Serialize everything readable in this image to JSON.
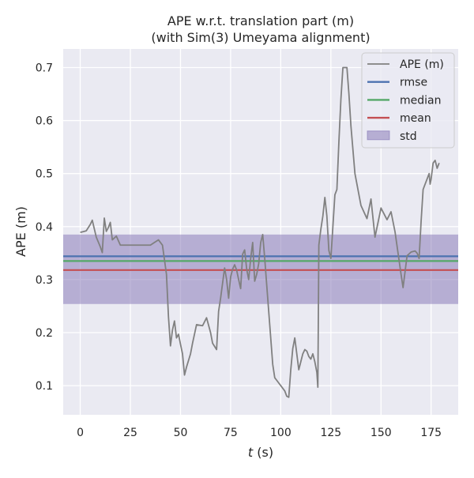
{
  "chart_data": {
    "type": "line",
    "title": "APE w.r.t. translation part (m)",
    "subtitle": "(with Sim(3) Umeyama alignment)",
    "xlabel_var": "t",
    "xlabel_unit": " (s)",
    "ylabel": "APE (m)",
    "xlim": [
      -8.5,
      188.5
    ],
    "ylim": [
      0.045,
      0.735
    ],
    "xticks": [
      0,
      25,
      50,
      75,
      100,
      125,
      150,
      175
    ],
    "yticks": [
      0.1,
      0.2,
      0.3,
      0.4,
      0.5,
      0.6,
      0.7
    ],
    "grid": true,
    "legend_position": "top-right",
    "colors": {
      "background": "#eaeaf2",
      "grid": "#ffffff",
      "ape": "#808080",
      "rmse": "#4c72b0",
      "median": "#55a868",
      "mean": "#c44e52",
      "std": "#8172b3"
    },
    "series": [
      {
        "name": "APE (m)",
        "x": [
          0,
          2,
          3,
          5,
          6,
          8,
          10,
          11,
          12,
          13,
          14,
          15,
          16,
          18,
          20,
          25,
          30,
          35,
          37,
          39,
          41,
          43,
          44,
          45,
          46,
          47,
          48,
          49,
          50,
          51,
          52,
          53,
          55,
          56,
          58,
          61,
          63,
          65,
          66,
          68,
          69,
          70,
          72,
          73,
          74,
          75,
          76,
          77,
          78,
          79,
          80,
          81,
          82,
          83,
          84,
          85,
          86,
          87,
          88,
          89,
          90,
          91,
          92,
          93,
          94,
          95,
          96,
          97,
          98,
          99,
          100,
          101,
          102,
          103,
          104,
          105,
          106,
          107,
          108,
          109,
          110,
          111,
          112,
          113,
          114,
          115,
          116,
          117,
          117.5,
          118,
          118.5,
          119,
          120,
          121,
          122,
          123,
          124,
          125,
          126,
          127,
          128,
          129,
          130,
          131,
          132,
          133,
          134,
          135,
          137,
          140,
          143,
          145,
          147,
          150,
          153,
          155,
          157,
          160,
          161,
          163,
          165,
          167,
          168,
          169,
          170,
          171,
          172,
          173,
          174,
          174.5,
          175,
          176,
          177,
          178,
          179
        ],
        "y": [
          0.389,
          0.391,
          0.392,
          0.404,
          0.412,
          0.38,
          0.362,
          0.351,
          0.416,
          0.391,
          0.398,
          0.408,
          0.375,
          0.382,
          0.365,
          0.365,
          0.365,
          0.365,
          0.37,
          0.375,
          0.365,
          0.31,
          0.23,
          0.175,
          0.205,
          0.222,
          0.19,
          0.197,
          0.178,
          0.16,
          0.12,
          0.135,
          0.16,
          0.18,
          0.215,
          0.213,
          0.228,
          0.2,
          0.18,
          0.168,
          0.24,
          0.265,
          0.322,
          0.3,
          0.265,
          0.305,
          0.32,
          0.328,
          0.318,
          0.3,
          0.283,
          0.348,
          0.356,
          0.32,
          0.3,
          0.34,
          0.37,
          0.297,
          0.31,
          0.33,
          0.37,
          0.385,
          0.34,
          0.29,
          0.24,
          0.19,
          0.14,
          0.115,
          0.11,
          0.105,
          0.1,
          0.095,
          0.09,
          0.08,
          0.078,
          0.13,
          0.17,
          0.19,
          0.16,
          0.13,
          0.145,
          0.16,
          0.168,
          0.165,
          0.155,
          0.15,
          0.16,
          0.145,
          0.135,
          0.125,
          0.097,
          0.365,
          0.395,
          0.42,
          0.455,
          0.42,
          0.355,
          0.34,
          0.4,
          0.46,
          0.47,
          0.56,
          0.64,
          0.7,
          0.7,
          0.7,
          0.65,
          0.59,
          0.5,
          0.44,
          0.415,
          0.452,
          0.38,
          0.435,
          0.413,
          0.428,
          0.39,
          0.31,
          0.285,
          0.345,
          0.352,
          0.354,
          0.35,
          0.34,
          0.41,
          0.47,
          0.48,
          0.49,
          0.5,
          0.48,
          0.49,
          0.52,
          0.525,
          0.51,
          0.52
        ]
      }
    ],
    "stats": {
      "rmse": 0.344,
      "median": 0.335,
      "mean": 0.318,
      "std_low": 0.254,
      "std_high": 0.385
    },
    "legend": [
      {
        "key": "ape",
        "label": "APE (m)",
        "kind": "thin-line"
      },
      {
        "key": "rmse",
        "label": "rmse",
        "kind": "line"
      },
      {
        "key": "median",
        "label": "median",
        "kind": "line"
      },
      {
        "key": "mean",
        "label": "mean",
        "kind": "line"
      },
      {
        "key": "std",
        "label": "std",
        "kind": "patch"
      }
    ]
  }
}
